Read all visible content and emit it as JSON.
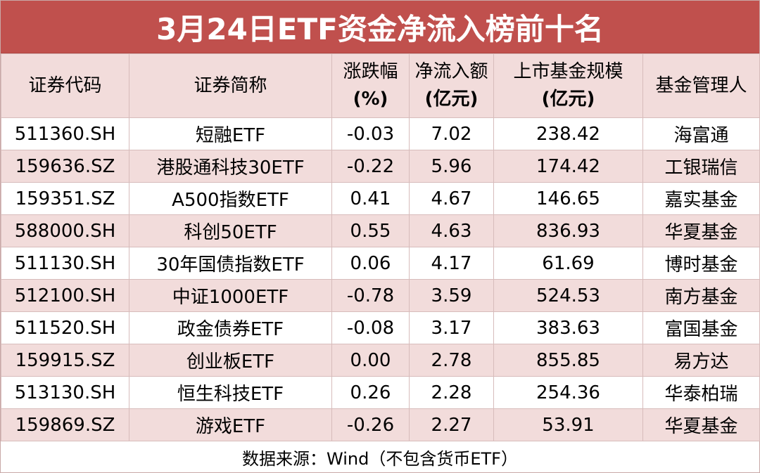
{
  "title": "3月24日ETF资金净流入榜前十名",
  "colors": {
    "title_bg": "#C0504D",
    "header_bg": "#F2DCDB",
    "alt_row_bg": "#F2DCDB"
  },
  "headers": [
    {
      "label": "证券代码",
      "unit": ""
    },
    {
      "label": "证券简称",
      "unit": ""
    },
    {
      "label": "涨跌幅",
      "unit": "(%)"
    },
    {
      "label": "净流入额",
      "unit": "(亿元)"
    },
    {
      "label": "上市基金规模",
      "unit": "(亿元)"
    },
    {
      "label": "基金管理人",
      "unit": ""
    }
  ],
  "rows": [
    [
      "511360.SH",
      "短融ETF",
      "-0.03",
      "7.02",
      "238.42",
      "海富通"
    ],
    [
      "159636.SZ",
      "港股通科技30ETF",
      "-0.22",
      "5.96",
      "174.42",
      "工银瑞信"
    ],
    [
      "159351.SZ",
      "A500指数ETF",
      "0.41",
      "4.67",
      "146.65",
      "嘉实基金"
    ],
    [
      "588000.SH",
      "科创50ETF",
      "0.55",
      "4.63",
      "836.93",
      "华夏基金"
    ],
    [
      "511130.SH",
      "30年国债指数ETF",
      "0.06",
      "4.17",
      "61.69",
      "博时基金"
    ],
    [
      "512100.SH",
      "中证1000ETF",
      "-0.78",
      "3.59",
      "524.53",
      "南方基金"
    ],
    [
      "511520.SH",
      "政金债券ETF",
      "-0.08",
      "3.17",
      "383.63",
      "富国基金"
    ],
    [
      "159915.SZ",
      "创业板ETF",
      "0.00",
      "2.78",
      "855.85",
      "易方达"
    ],
    [
      "513130.SH",
      "恒生科技ETF",
      "0.26",
      "2.28",
      "254.36",
      "华泰柏瑞"
    ],
    [
      "159869.SZ",
      "游戏ETF",
      "-0.26",
      "2.27",
      "53.91",
      "华夏基金"
    ]
  ],
  "footer": "数据来源：Wind（不包含货币ETF）"
}
